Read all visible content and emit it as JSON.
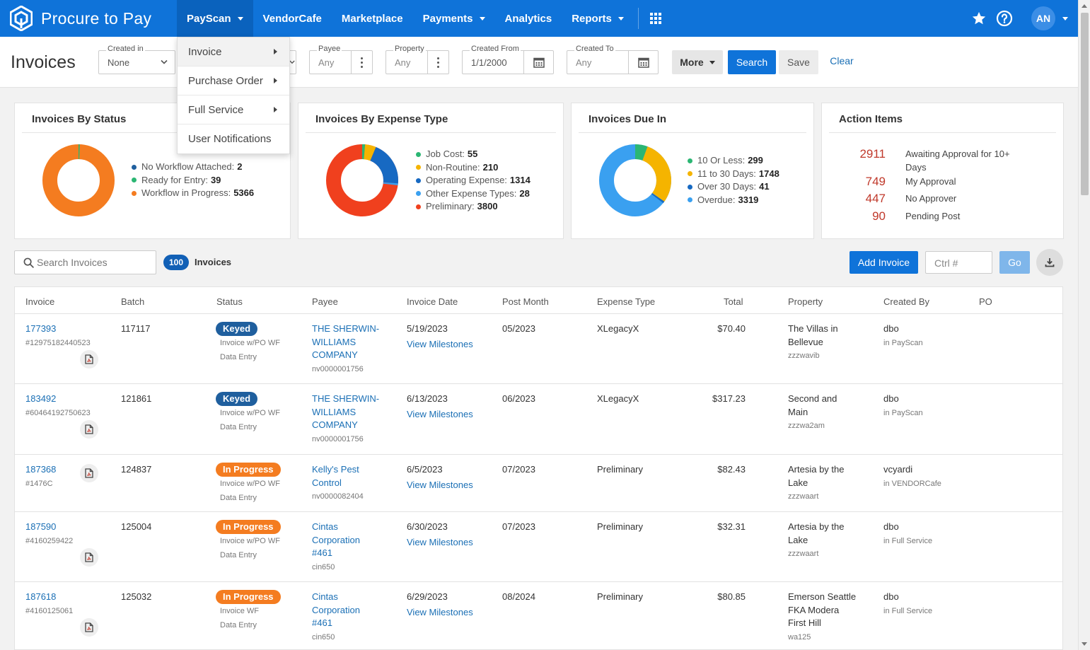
{
  "brand": {
    "name": "Procure to Pay",
    "icon": "hexagon-logo-icon"
  },
  "nav": {
    "items": [
      {
        "label": "PayScan",
        "has_caret": true,
        "active": true
      },
      {
        "label": "VendorCafe",
        "has_caret": false
      },
      {
        "label": "Marketplace",
        "has_caret": false
      },
      {
        "label": "Payments",
        "has_caret": true
      },
      {
        "label": "Analytics",
        "has_caret": false
      },
      {
        "label": "Reports",
        "has_caret": true
      }
    ],
    "avatar_initials": "AN"
  },
  "dropdown": {
    "items": [
      {
        "label": "Invoice",
        "submenu": true
      },
      {
        "label": "Purchase Order",
        "submenu": true
      },
      {
        "label": "Full Service",
        "submenu": true
      },
      {
        "label": "User Notifications",
        "submenu": false
      }
    ]
  },
  "filters": {
    "page_title": "Invoices",
    "created_in": {
      "label": "Created in",
      "value": "None"
    },
    "payee": {
      "label": "Payee",
      "value": "Any"
    },
    "property": {
      "label": "Property",
      "value": "Any"
    },
    "created_from": {
      "label": "Created From",
      "value": "1/1/2000"
    },
    "created_to": {
      "label": "Created To",
      "value": "Any"
    },
    "more_label": "More",
    "search_label": "Search",
    "save_label": "Save",
    "clear_label": "Clear"
  },
  "cards": {
    "status": {
      "title": "Invoices By Status",
      "items": [
        {
          "label": "No Workflow Attached:",
          "value": "2",
          "color": "#1f5f9e"
        },
        {
          "label": "Ready for Entry:",
          "value": "39",
          "color": "#2bb673"
        },
        {
          "label": "Workflow in Progress:",
          "value": "5366",
          "color": "#f47c20"
        }
      ]
    },
    "expense": {
      "title": "Invoices By Expense Type",
      "items": [
        {
          "label": "Job Cost:",
          "value": "55",
          "color": "#2bb673"
        },
        {
          "label": "Non-Routine:",
          "value": "210",
          "color": "#f5b400"
        },
        {
          "label": "Operating Expense:",
          "value": "1314",
          "color": "#1769c2"
        },
        {
          "label": "Other Expense Types:",
          "value": "28",
          "color": "#3aa0f0"
        },
        {
          "label": "Preliminary:",
          "value": "3800",
          "color": "#f0401e"
        }
      ]
    },
    "due": {
      "title": "Invoices Due In",
      "items": [
        {
          "label": "10 Or Less:",
          "value": "299",
          "color": "#2bb673"
        },
        {
          "label": "11 to 30 Days:",
          "value": "1748",
          "color": "#f5b400"
        },
        {
          "label": "Over 30 Days:",
          "value": "41",
          "color": "#1769c2"
        },
        {
          "label": "Overdue:",
          "value": "3319",
          "color": "#3aa0f0"
        }
      ]
    },
    "actions": {
      "title": "Action Items",
      "items": [
        {
          "count": "2911",
          "label": "Awaiting Approval for 10+ Days"
        },
        {
          "count": "749",
          "label": "My Approval"
        },
        {
          "count": "447",
          "label": "No Approver"
        },
        {
          "count": "90",
          "label": "Pending Post"
        }
      ]
    }
  },
  "toolbar": {
    "search_placeholder": "Search Invoices",
    "count": "100",
    "count_label": "Invoices",
    "add_label": "Add Invoice",
    "ctrl_placeholder": "Ctrl #",
    "go_label": "Go"
  },
  "table": {
    "columns": [
      "Invoice",
      "Batch",
      "Status",
      "Payee",
      "Invoice Date",
      "Post Month",
      "Expense Type",
      "Total",
      "Property",
      "Created By",
      "PO"
    ],
    "rows": [
      {
        "invoice": "177393",
        "invoice_sub": "#12975182440523",
        "batch": "117117",
        "status": "Keyed",
        "status_kind": "keyed",
        "status_sub1": "Invoice w/PO WF",
        "status_sub2": "Data Entry",
        "payee": [
          "THE SHERWIN-",
          "WILLIAMS",
          "COMPANY"
        ],
        "payee_sub": "nv0000001756",
        "date": "5/19/2023",
        "milestones": "View Milestones",
        "post_month": "05/2023",
        "expense": "XLegacyX",
        "total": "$70.40",
        "property": [
          "The Villas in",
          "Bellevue"
        ],
        "property_sub": "zzzwavib",
        "created_by": "dbo",
        "created_in": "in PayScan"
      },
      {
        "invoice": "183492",
        "invoice_sub": "#60464192750623",
        "batch": "121861",
        "status": "Keyed",
        "status_kind": "keyed",
        "status_sub1": "Invoice w/PO WF",
        "status_sub2": "Data Entry",
        "payee": [
          "THE SHERWIN-",
          "WILLIAMS",
          "COMPANY"
        ],
        "payee_sub": "nv0000001756",
        "date": "6/13/2023",
        "milestones": "View Milestones",
        "post_month": "06/2023",
        "expense": "XLegacyX",
        "total": "$317.23",
        "property": [
          "Second and",
          "Main"
        ],
        "property_sub": "zzzwa2am",
        "created_by": "dbo",
        "created_in": "in PayScan"
      },
      {
        "invoice": "187368",
        "invoice_sub": "#1476C",
        "batch": "124837",
        "status": "In Progress",
        "status_kind": "progress",
        "status_sub1": "Invoice w/PO WF",
        "status_sub2": "Data Entry",
        "payee": [
          "Kelly's Pest",
          "Control"
        ],
        "payee_sub": "nv0000082404",
        "date": "6/5/2023",
        "milestones": "View Milestones",
        "post_month": "07/2023",
        "expense": "Preliminary",
        "total": "$82.43",
        "property": [
          "Artesia by the",
          "Lake"
        ],
        "property_sub": "zzzwaart",
        "created_by": "vcyardi",
        "created_in": "in VENDORCafe"
      },
      {
        "invoice": "187590",
        "invoice_sub": "#4160259422",
        "batch": "125004",
        "status": "In Progress",
        "status_kind": "progress",
        "status_sub1": "Invoice w/PO WF",
        "status_sub2": "Data Entry",
        "payee": [
          "Cintas",
          "Corporation",
          "#461"
        ],
        "payee_sub": "cin650",
        "date": "6/30/2023",
        "milestones": "View Milestones",
        "post_month": "07/2023",
        "expense": "Preliminary",
        "total": "$32.31",
        "property": [
          "Artesia by the",
          "Lake"
        ],
        "property_sub": "zzzwaart",
        "created_by": "dbo",
        "created_in": "in Full Service"
      },
      {
        "invoice": "187618",
        "invoice_sub": "#4160125061",
        "batch": "125032",
        "status": "In Progress",
        "status_kind": "progress",
        "status_sub1": "Invoice WF",
        "status_sub2": "Data Entry",
        "payee": [
          "Cintas",
          "Corporation",
          "#461"
        ],
        "payee_sub": "cin650",
        "date": "6/29/2023",
        "milestones": "View Milestones",
        "post_month": "08/2024",
        "expense": "Preliminary",
        "total": "$80.85",
        "property": [
          "Emerson Seattle",
          "FKA Modera",
          "First Hill"
        ],
        "property_sub": "wa125",
        "created_by": "dbo",
        "created_in": "in Full Service"
      }
    ]
  }
}
